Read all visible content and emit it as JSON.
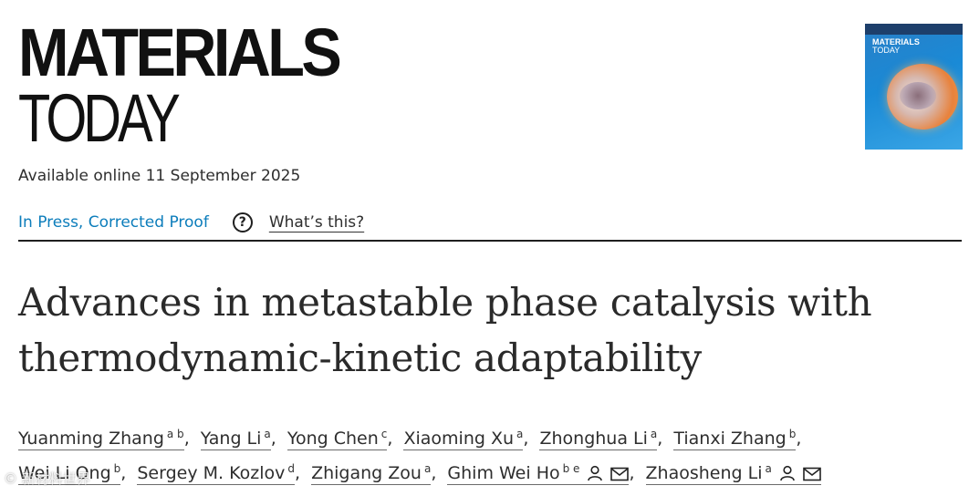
{
  "journal": {
    "line1": "MATERIALS",
    "line2": "TODAY"
  },
  "cover": {
    "title_line1": "MATERIALS",
    "title_line2": "TODAY"
  },
  "availability": "Available online 11 September 2025",
  "status": {
    "label": "In Press, Corrected Proof",
    "help_icon": "question-circle-icon",
    "whats_this": "What’s this?"
  },
  "article": {
    "title_line1": "Advances in metastable phase catalysis with",
    "title_line2": "thermodynamic-kinetic adaptability"
  },
  "authors": [
    {
      "name": "Yuanming Zhang",
      "aff": "a b"
    },
    {
      "name": "Yang Li",
      "aff": "a"
    },
    {
      "name": "Yong Chen",
      "aff": "c"
    },
    {
      "name": "Xiaoming Xu",
      "aff": "a"
    },
    {
      "name": "Zhonghua Li",
      "aff": "a"
    },
    {
      "name": "Tianxi Zhang",
      "aff": "b"
    },
    {
      "name": "Wei Li Ong",
      "aff": "b"
    },
    {
      "name": "Sergey M. Kozlov",
      "aff": "d"
    },
    {
      "name": "Zhigang Zou",
      "aff": "a"
    },
    {
      "name": "Ghim Wei Ho",
      "aff": "b e",
      "icons": [
        "person-icon",
        "envelope-icon"
      ]
    },
    {
      "name": "Zhaosheng Li",
      "aff": "a",
      "icons": [
        "person-icon",
        "envelope-icon"
      ]
    }
  ],
  "watermark": "© 新材料世界",
  "colors": {
    "link": "#0c7dbb",
    "text": "#2e2e2e"
  }
}
